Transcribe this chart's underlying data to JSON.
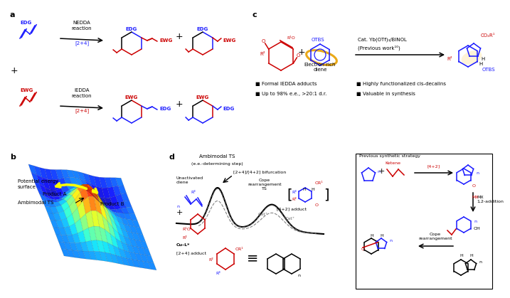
{
  "blue": "#1a1aff",
  "red": "#cc0000",
  "black": "#000000",
  "orange": "#e8a000",
  "gray": "#666666",
  "bg": "#ffffff",
  "fs_panel": 8,
  "fs_text": 6.0,
  "fs_small": 5.0,
  "fs_tiny": 4.5,
  "lw": 1.1,
  "panel_a": "a",
  "panel_b": "b",
  "panel_c": "c",
  "panel_d": "d",
  "nedda": "NEDDA\nreaction",
  "iedda": "IEDDA\nreaction",
  "nedda_bracket": "[2+4]",
  "iedda_bracket": "[2+4]",
  "bullets_left": [
    "Formal IEDDA adducts",
    "Up to 98% e.e., >20:1 d.r."
  ],
  "bullets_right": [
    "Highly functionalized cis-decalins",
    "Valuable in synthesis"
  ],
  "cat_text": "Cat. Yb(OTf)₃/BINOL",
  "prev_work": "(Previous work¹⁰)",
  "elec_rich": "Electron-rich\ndiene",
  "ambimodal": "Ambimodal TS",
  "ee_step": "(e.e.-determining step)",
  "bifurcation": "[2+4]/[4+2] bifurcation",
  "unact_diene": "Unactivated\ndiene",
  "cope_ts": "Cope\nrearrangement\nTS",
  "four_two_adduct": "[4+2] adduct",
  "cu_l": "Cu–L*",
  "two_four_adduct": "[2+4] adduct",
  "pot_energy": "Potential energy\nsurface",
  "ambi_ts_label": "Ambimodal TS",
  "prod_b": "Product B",
  "prod_a": "Product A",
  "prev_synth": "Previous synthetic strategy",
  "ketene": "Ketene",
  "mx_add": "MX\n1,2-addition",
  "cope_rear": "Cope\nrearrangement",
  "four_two_rxn": "[4+2]"
}
